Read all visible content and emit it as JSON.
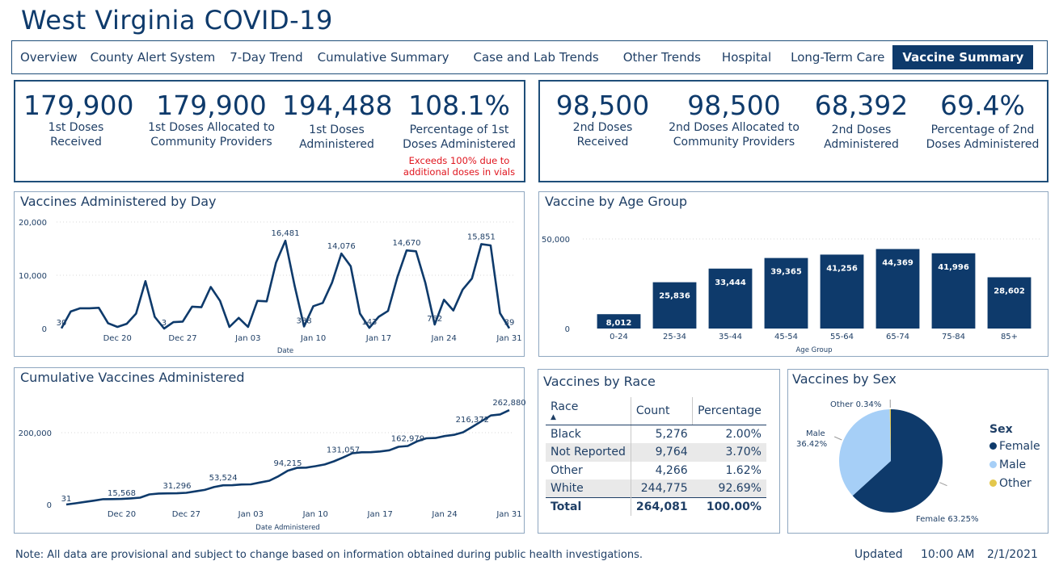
{
  "page_title": "West Virginia COVID-19",
  "tabs": [
    {
      "label": "Overview"
    },
    {
      "label": "County Alert System"
    },
    {
      "label": "7-Day Trend"
    },
    {
      "label": "Cumulative Summary"
    },
    {
      "label": "Case and Lab Trends"
    },
    {
      "label": "Other Trends"
    },
    {
      "label": "Hospital"
    },
    {
      "label": "Long-Term Care"
    },
    {
      "label": "Vaccine Summary",
      "active": true
    }
  ],
  "first_doses": [
    {
      "value": "179,900",
      "label": "1st Doses Received"
    },
    {
      "value": "179,900",
      "label": "1st Doses Allocated to Community Providers"
    },
    {
      "value": "194,488",
      "label": "1st Doses Administered"
    },
    {
      "value": "108.1%",
      "label": "Percentage of 1st Doses Administered",
      "note": "Exceeds 100% due to additional doses in vials"
    }
  ],
  "second_doses": [
    {
      "value": "98,500",
      "label": "2nd Doses Received"
    },
    {
      "value": "98,500",
      "label": "2nd Doses Allocated to Community Providers"
    },
    {
      "value": "68,392",
      "label": "2nd Doses Administered"
    },
    {
      "value": "69.4%",
      "label": "Percentage of 2nd Doses Administered"
    }
  ],
  "panels": {
    "by_day": "Vaccines Administered by Day",
    "by_age": "Vaccine by Age Group",
    "cumulative": "Cumulative Vaccines Administered",
    "by_race": "Vaccines by Race",
    "by_sex": "Vaccines by Sex"
  },
  "race_table": {
    "headers": [
      "Race",
      "Count",
      "Percentage"
    ],
    "rows": [
      {
        "race": "Black",
        "count": "5,276",
        "pct": "2.00%"
      },
      {
        "race": "Not Reported",
        "count": "9,764",
        "pct": "3.70%"
      },
      {
        "race": "Other",
        "count": "4,266",
        "pct": "1.62%"
      },
      {
        "race": "White",
        "count": "244,775",
        "pct": "92.69%"
      }
    ],
    "total": {
      "race": "Total",
      "count": "264,081",
      "pct": "100.00%"
    }
  },
  "footer": {
    "note": "Note: All data are provisional and subject to change based on information obtained during public health investigations.",
    "updated_label": "Updated",
    "time": "10:00 AM",
    "date": "2/1/2021"
  },
  "colors": {
    "navy": "#0e3a6b",
    "light_blue": "#a6cff7",
    "gold": "#e3c74c",
    "red": "#e0151e"
  },
  "chart_data": [
    {
      "id": "by_day",
      "type": "line",
      "title": "Vaccines Administered by Day",
      "xlabel": "Date",
      "ylabel": "",
      "ylim": [
        0,
        20000
      ],
      "yticks": [
        0,
        10000,
        20000
      ],
      "ytick_labels": [
        "0",
        "10,000",
        "20,000"
      ],
      "xtick_labels": [
        "Dec 20",
        "Dec 27",
        "Jan 03",
        "Jan 10",
        "Jan 17",
        "Jan 24",
        "Jan 31"
      ],
      "xtick_index": [
        6,
        13,
        20,
        27,
        34,
        41,
        48
      ],
      "values": [
        30,
        3200,
        3800,
        3800,
        3900,
        1000,
        300,
        900,
        2800,
        8900,
        2200,
        3,
        1200,
        1300,
        4100,
        4000,
        7800,
        5200,
        300,
        2000,
        300,
        5200,
        5100,
        12400,
        16481,
        8000,
        388,
        4200,
        4800,
        8600,
        14076,
        11700,
        2800,
        143,
        2200,
        3300,
        9600,
        14670,
        14500,
        8600,
        762,
        5400,
        3400,
        7300,
        9400,
        15851,
        15600,
        2900,
        39
      ],
      "point_labels": [
        {
          "i": 0,
          "text": "30"
        },
        {
          "i": 11,
          "text": "3"
        },
        {
          "i": 24,
          "text": "16,481"
        },
        {
          "i": 26,
          "text": "388"
        },
        {
          "i": 30,
          "text": "14,076"
        },
        {
          "i": 33,
          "text": "143"
        },
        {
          "i": 37,
          "text": "14,670"
        },
        {
          "i": 40,
          "text": "762"
        },
        {
          "i": 45,
          "text": "15,851"
        },
        {
          "i": 48,
          "text": "39"
        }
      ]
    },
    {
      "id": "by_age",
      "type": "bar",
      "title": "Vaccine by Age Group",
      "xlabel": "Age Group",
      "ylabel": "",
      "ylim": [
        0,
        50000
      ],
      "yticks": [
        0,
        50000
      ],
      "ytick_labels": [
        "0",
        "50,000"
      ],
      "categories": [
        "0-24",
        "25-34",
        "35-44",
        "45-54",
        "55-64",
        "65-74",
        "75-84",
        "85+"
      ],
      "values": [
        8012,
        25836,
        33444,
        39365,
        41256,
        44369,
        41996,
        28602
      ],
      "value_labels": [
        "8,012",
        "25,836",
        "33,444",
        "39,365",
        "41,256",
        "44,369",
        "41,996",
        "28,602"
      ]
    },
    {
      "id": "cumulative",
      "type": "line",
      "title": "Cumulative Vaccines Administered",
      "xlabel": "Date Administered",
      "ylabel": "",
      "ylim": [
        0,
        290000
      ],
      "yticks": [
        0,
        200000
      ],
      "ytick_labels": [
        "0",
        "200,000"
      ],
      "xtick_labels": [
        "Dec 20",
        "Dec 27",
        "Jan 03",
        "Jan 10",
        "Jan 17",
        "Jan 24",
        "Jan 31"
      ],
      "xtick_index": [
        6,
        13,
        20,
        27,
        34,
        41,
        48
      ],
      "values": [
        31,
        3300,
        7100,
        10900,
        14800,
        15000,
        15568,
        17000,
        19000,
        28000,
        30500,
        31000,
        31296,
        32600,
        36700,
        40700,
        48500,
        53524,
        53800,
        55800,
        56100,
        61300,
        66400,
        78800,
        94215,
        102000,
        102700,
        106800,
        111600,
        120200,
        131057,
        142700,
        145500,
        145600,
        147800,
        151100,
        160700,
        162979,
        175800,
        184400,
        185200,
        190600,
        194000,
        201300,
        216372,
        232300,
        247900,
        250800,
        262880
      ],
      "point_labels": [
        {
          "i": 0,
          "text": "31"
        },
        {
          "i": 6,
          "text": "15,568"
        },
        {
          "i": 12,
          "text": "31,296"
        },
        {
          "i": 17,
          "text": "53,524"
        },
        {
          "i": 24,
          "text": "94,215"
        },
        {
          "i": 30,
          "text": "131,057"
        },
        {
          "i": 37,
          "text": "162,979"
        },
        {
          "i": 44,
          "text": "216,372"
        },
        {
          "i": 48,
          "text": "262,880"
        }
      ]
    },
    {
      "id": "by_sex",
      "type": "pie",
      "title": "Vaccines by Sex",
      "legend_title": "Sex",
      "legend_position": "right",
      "slices": [
        {
          "name": "Female",
          "value": 63.25,
          "label": "Female 63.25%",
          "color": "#0e3a6b"
        },
        {
          "name": "Male",
          "value": 36.42,
          "label": "Male 36.42%",
          "color": "#a6cff7"
        },
        {
          "name": "Other",
          "value": 0.34,
          "label": "Other 0.34%",
          "color": "#e3c74c"
        }
      ]
    }
  ]
}
